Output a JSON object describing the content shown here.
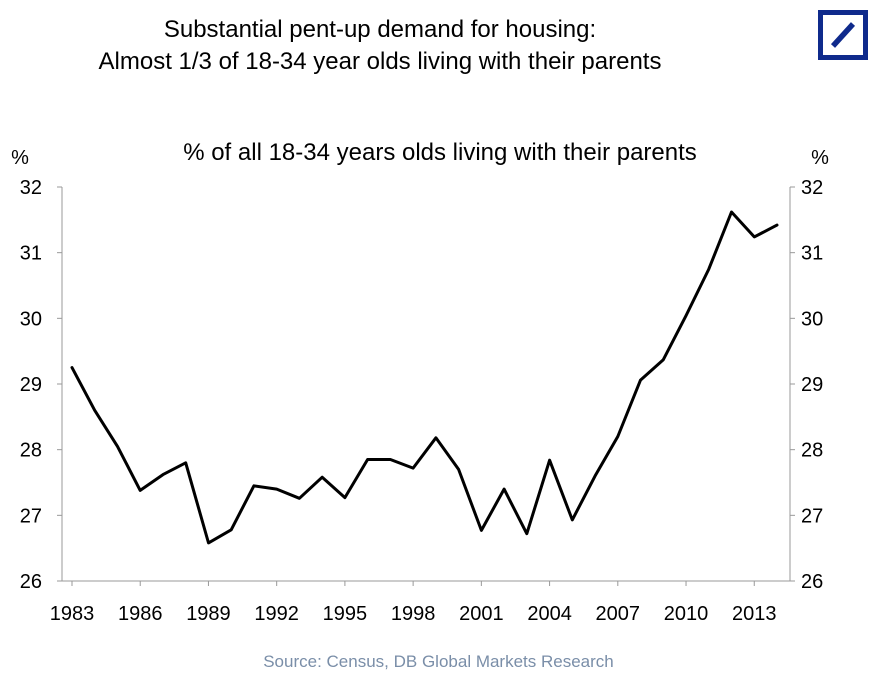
{
  "title_line1": "Substantial pent-up demand for housing:",
  "title_line2": "Almost 1/3 of 18-34 year olds living with their parents",
  "source": "Source: Census, DB Global Markets Research",
  "colors": {
    "logo": "#0f2a8c",
    "line": "#000000",
    "source": "#7a8ea8"
  },
  "logo_icon": "deutsche-bank-logo-icon",
  "chart_data": {
    "type": "line",
    "title": "% of all 18-34 years olds living with their parents",
    "ylabel_left": "%",
    "ylabel_right": "%",
    "ylim": [
      26,
      32
    ],
    "yticks": [
      26,
      27,
      28,
      29,
      30,
      31,
      32
    ],
    "xticks": [
      "1983",
      "1986",
      "1989",
      "1992",
      "1995",
      "1998",
      "2001",
      "2004",
      "2007",
      "2010",
      "2013"
    ],
    "grid": false,
    "series": [
      {
        "x": [
          1983,
          1984,
          1985,
          1986,
          1987,
          1988,
          1989,
          1990,
          1991,
          1992,
          1993,
          1994,
          1995,
          1996,
          1997,
          1998,
          1999,
          2000,
          2001,
          2002,
          2003,
          2004,
          2005,
          2006,
          2007,
          2008,
          2009,
          2010,
          2011,
          2012,
          2013,
          2014
        ],
        "values": [
          29.25,
          28.6,
          28.05,
          27.38,
          27.62,
          27.8,
          26.58,
          26.78,
          27.45,
          27.4,
          27.26,
          27.58,
          27.27,
          27.85,
          27.85,
          27.72,
          28.18,
          27.7,
          26.77,
          27.4,
          26.72,
          27.84,
          26.93,
          27.6,
          28.2,
          29.06,
          29.37,
          30.04,
          30.75,
          31.62,
          31.24,
          31.42
        ]
      }
    ]
  }
}
